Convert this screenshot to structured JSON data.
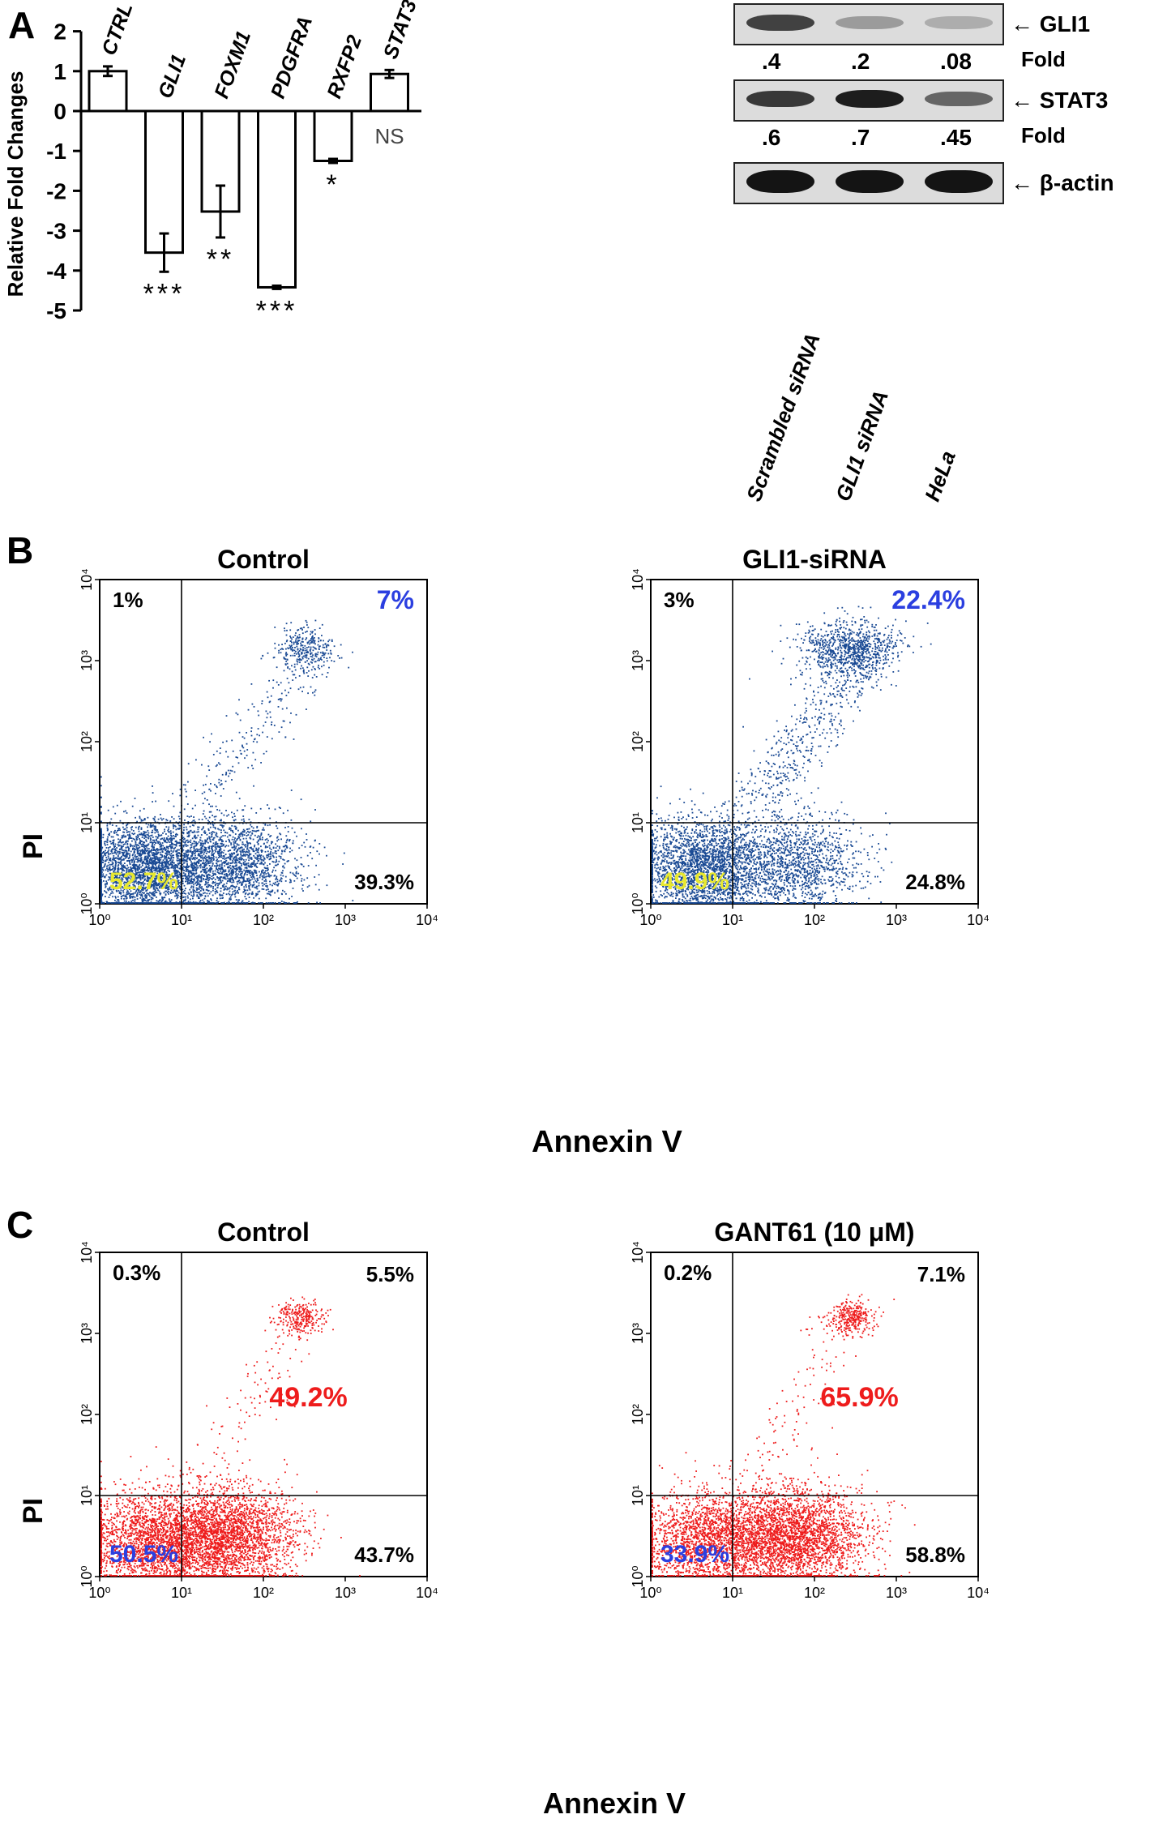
{
  "panels": {
    "a": {
      "letter": "A"
    },
    "b": {
      "letter": "B",
      "xlabel": "Annexin V",
      "ylabel": "PI"
    },
    "c": {
      "letter": "C",
      "xlabel": "Annexin V",
      "ylabel": "PI"
    }
  },
  "chart_data": [
    {
      "type": "bar",
      "panel": "A",
      "categories": [
        "CTRL",
        "GLI1",
        "FOXM1",
        "PDGFRA",
        "RXFP2",
        "STAT3"
      ],
      "values": [
        1.0,
        -3.55,
        -2.52,
        -4.42,
        -1.25,
        0.93
      ],
      "errors": [
        0.12,
        0.48,
        0.65,
        0.04,
        0.05,
        0.1
      ],
      "significance": [
        "",
        "***",
        "**",
        "***",
        "*",
        "NS"
      ],
      "ylabel": "Relative Fold Changes",
      "ylim": [
        -5,
        2
      ],
      "yticks": [
        "2",
        "1",
        "0",
        "-1",
        "-2",
        "-3",
        "-4",
        "-5"
      ],
      "bar_fill": "#ffffff",
      "grid": false
    },
    {
      "type": "table",
      "panel": "A-blot",
      "lanes": [
        "Scrambled siRNA",
        "GLI1 siRNA",
        "HeLa"
      ],
      "rows": [
        {
          "label": "← GLI1",
          "fold_label": "Fold",
          "fold": [
            ".4",
            ".2",
            ".08"
          ],
          "intensity": [
            0.75,
            0.25,
            0.15
          ]
        },
        {
          "label": "← STAT3",
          "fold_label": "Fold",
          "fold": [
            ".6",
            ".7",
            ".45"
          ],
          "intensity": [
            0.8,
            0.95,
            0.55
          ]
        },
        {
          "label": "← β-actin",
          "intensity": [
            1.0,
            1.0,
            1.0
          ]
        }
      ]
    },
    {
      "type": "scatter",
      "panel": "B-left",
      "title": "Control",
      "color": "#1a4a94",
      "x_ticks": [
        "10⁰",
        "10¹",
        "10²",
        "10³",
        "10⁴"
      ],
      "y_ticks": [
        "10⁰",
        "10¹",
        "10²",
        "10³",
        "10⁴"
      ],
      "xlim": [
        1,
        10000
      ],
      "ylim": [
        1,
        10000
      ],
      "log_scale": true,
      "gate": [
        10,
        10
      ],
      "quadrants": {
        "upper_left": {
          "text": "1%",
          "color": "#000000"
        },
        "upper_right": {
          "text": "7%",
          "color": "#2b3fe0"
        },
        "lower_left": {
          "text": "52.7%",
          "color": "#e8e830"
        },
        "lower_right": {
          "text": "39.3%",
          "color": "#000000"
        }
      },
      "populations": [
        {
          "name": "viable",
          "log_x": [
            0.55,
            0.4
          ],
          "log_y": [
            0.45,
            0.3
          ],
          "weight": 0.52
        },
        {
          "name": "early-apoptotic",
          "log_x": [
            1.55,
            0.45
          ],
          "log_y": [
            0.5,
            0.3
          ],
          "weight": 0.38
        },
        {
          "name": "late-apoptotic",
          "log_x": [
            2.5,
            0.2
          ],
          "log_y": [
            3.15,
            0.15
          ],
          "weight": 0.06
        },
        {
          "name": "diagonal",
          "trail": true,
          "log_x": [
            1.2,
            2.6
          ],
          "log_y": [
            1.2,
            3.0
          ],
          "weight": 0.04
        }
      ]
    },
    {
      "type": "scatter",
      "panel": "B-right",
      "title": "GLI1-siRNA",
      "color": "#1a4a94",
      "x_ticks": [
        "10⁰",
        "10¹",
        "10²",
        "10³",
        "10⁴"
      ],
      "y_ticks": [
        "10⁰",
        "10¹",
        "10²",
        "10³",
        "10⁴"
      ],
      "xlim": [
        1,
        10000
      ],
      "ylim": [
        1,
        10000
      ],
      "log_scale": true,
      "gate": [
        10,
        10
      ],
      "quadrants": {
        "upper_left": {
          "text": "3%",
          "color": "#000000"
        },
        "upper_right": {
          "text": "22.4%",
          "color": "#2b3fe0"
        },
        "lower_left": {
          "text": "49.9%",
          "color": "#e8e830"
        },
        "lower_right": {
          "text": "24.8%",
          "color": "#000000"
        }
      },
      "populations": [
        {
          "name": "viable",
          "log_x": [
            0.65,
            0.4
          ],
          "log_y": [
            0.45,
            0.3
          ],
          "weight": 0.5
        },
        {
          "name": "early-apoptotic",
          "log_x": [
            1.8,
            0.4
          ],
          "log_y": [
            0.5,
            0.3
          ],
          "weight": 0.24
        },
        {
          "name": "late-apoptotic",
          "log_x": [
            2.4,
            0.3
          ],
          "log_y": [
            3.15,
            0.18
          ],
          "weight": 0.16
        },
        {
          "name": "diagonal",
          "trail": true,
          "log_x": [
            1.3,
            2.8
          ],
          "log_y": [
            1.3,
            3.3
          ],
          "weight": 0.1
        }
      ]
    },
    {
      "type": "scatter",
      "panel": "C-left",
      "title": "Control",
      "color": "#ee1c1c",
      "x_ticks": [
        "10⁰",
        "10¹",
        "10²",
        "10³",
        "10⁴"
      ],
      "y_ticks": [
        "10⁰",
        "10¹",
        "10²",
        "10³",
        "10⁴"
      ],
      "xlim": [
        1,
        10000
      ],
      "ylim": [
        1,
        10000
      ],
      "log_scale": true,
      "gate": [
        10,
        10
      ],
      "quadrants": {
        "upper_left": {
          "text": "0.3%",
          "color": "#000000"
        },
        "upper_right": {
          "text": "5.5%",
          "color": "#000000"
        },
        "lower_left": {
          "text": "50.5%",
          "color": "#2b3fe0"
        },
        "lower_right": {
          "text": "43.7%",
          "color": "#000000"
        }
      },
      "total_label": {
        "text": "49.2%",
        "color": "#ee1c1c"
      },
      "populations": [
        {
          "name": "viable",
          "log_x": [
            0.7,
            0.45
          ],
          "log_y": [
            0.45,
            0.3
          ],
          "weight": 0.5
        },
        {
          "name": "early-apoptotic",
          "log_x": [
            1.6,
            0.4
          ],
          "log_y": [
            0.5,
            0.3
          ],
          "weight": 0.43
        },
        {
          "name": "late-apoptotic",
          "log_x": [
            2.45,
            0.15
          ],
          "log_y": [
            3.2,
            0.1
          ],
          "weight": 0.05
        },
        {
          "name": "diagonal",
          "trail": true,
          "log_x": [
            1.3,
            2.4
          ],
          "log_y": [
            1.2,
            3.1
          ],
          "weight": 0.02
        }
      ]
    },
    {
      "type": "scatter",
      "panel": "C-right",
      "title": "GANT61 (10 μM)",
      "color": "#ee1c1c",
      "x_ticks": [
        "10⁰",
        "10¹",
        "10²",
        "10³",
        "10⁴"
      ],
      "y_ticks": [
        "10⁰",
        "10¹",
        "10²",
        "10³",
        "10⁴"
      ],
      "xlim": [
        1,
        10000
      ],
      "ylim": [
        1,
        10000
      ],
      "log_scale": true,
      "gate": [
        10,
        10
      ],
      "quadrants": {
        "upper_left": {
          "text": "0.2%",
          "color": "#000000"
        },
        "upper_right": {
          "text": "7.1%",
          "color": "#000000"
        },
        "lower_left": {
          "text": "33.9%",
          "color": "#2b3fe0"
        },
        "lower_right": {
          "text": "58.8%",
          "color": "#000000"
        }
      },
      "total_label": {
        "text": "65.9%",
        "color": "#ee1c1c"
      },
      "populations": [
        {
          "name": "viable",
          "log_x": [
            0.65,
            0.4
          ],
          "log_y": [
            0.45,
            0.3
          ],
          "weight": 0.34
        },
        {
          "name": "early-apoptotic",
          "log_x": [
            1.7,
            0.45
          ],
          "log_y": [
            0.5,
            0.3
          ],
          "weight": 0.58
        },
        {
          "name": "late-apoptotic",
          "log_x": [
            2.45,
            0.15
          ],
          "log_y": [
            3.2,
            0.1
          ],
          "weight": 0.06
        },
        {
          "name": "diagonal",
          "trail": true,
          "log_x": [
            1.3,
            2.3
          ],
          "log_y": [
            1.2,
            3.2
          ],
          "weight": 0.02
        }
      ]
    }
  ]
}
